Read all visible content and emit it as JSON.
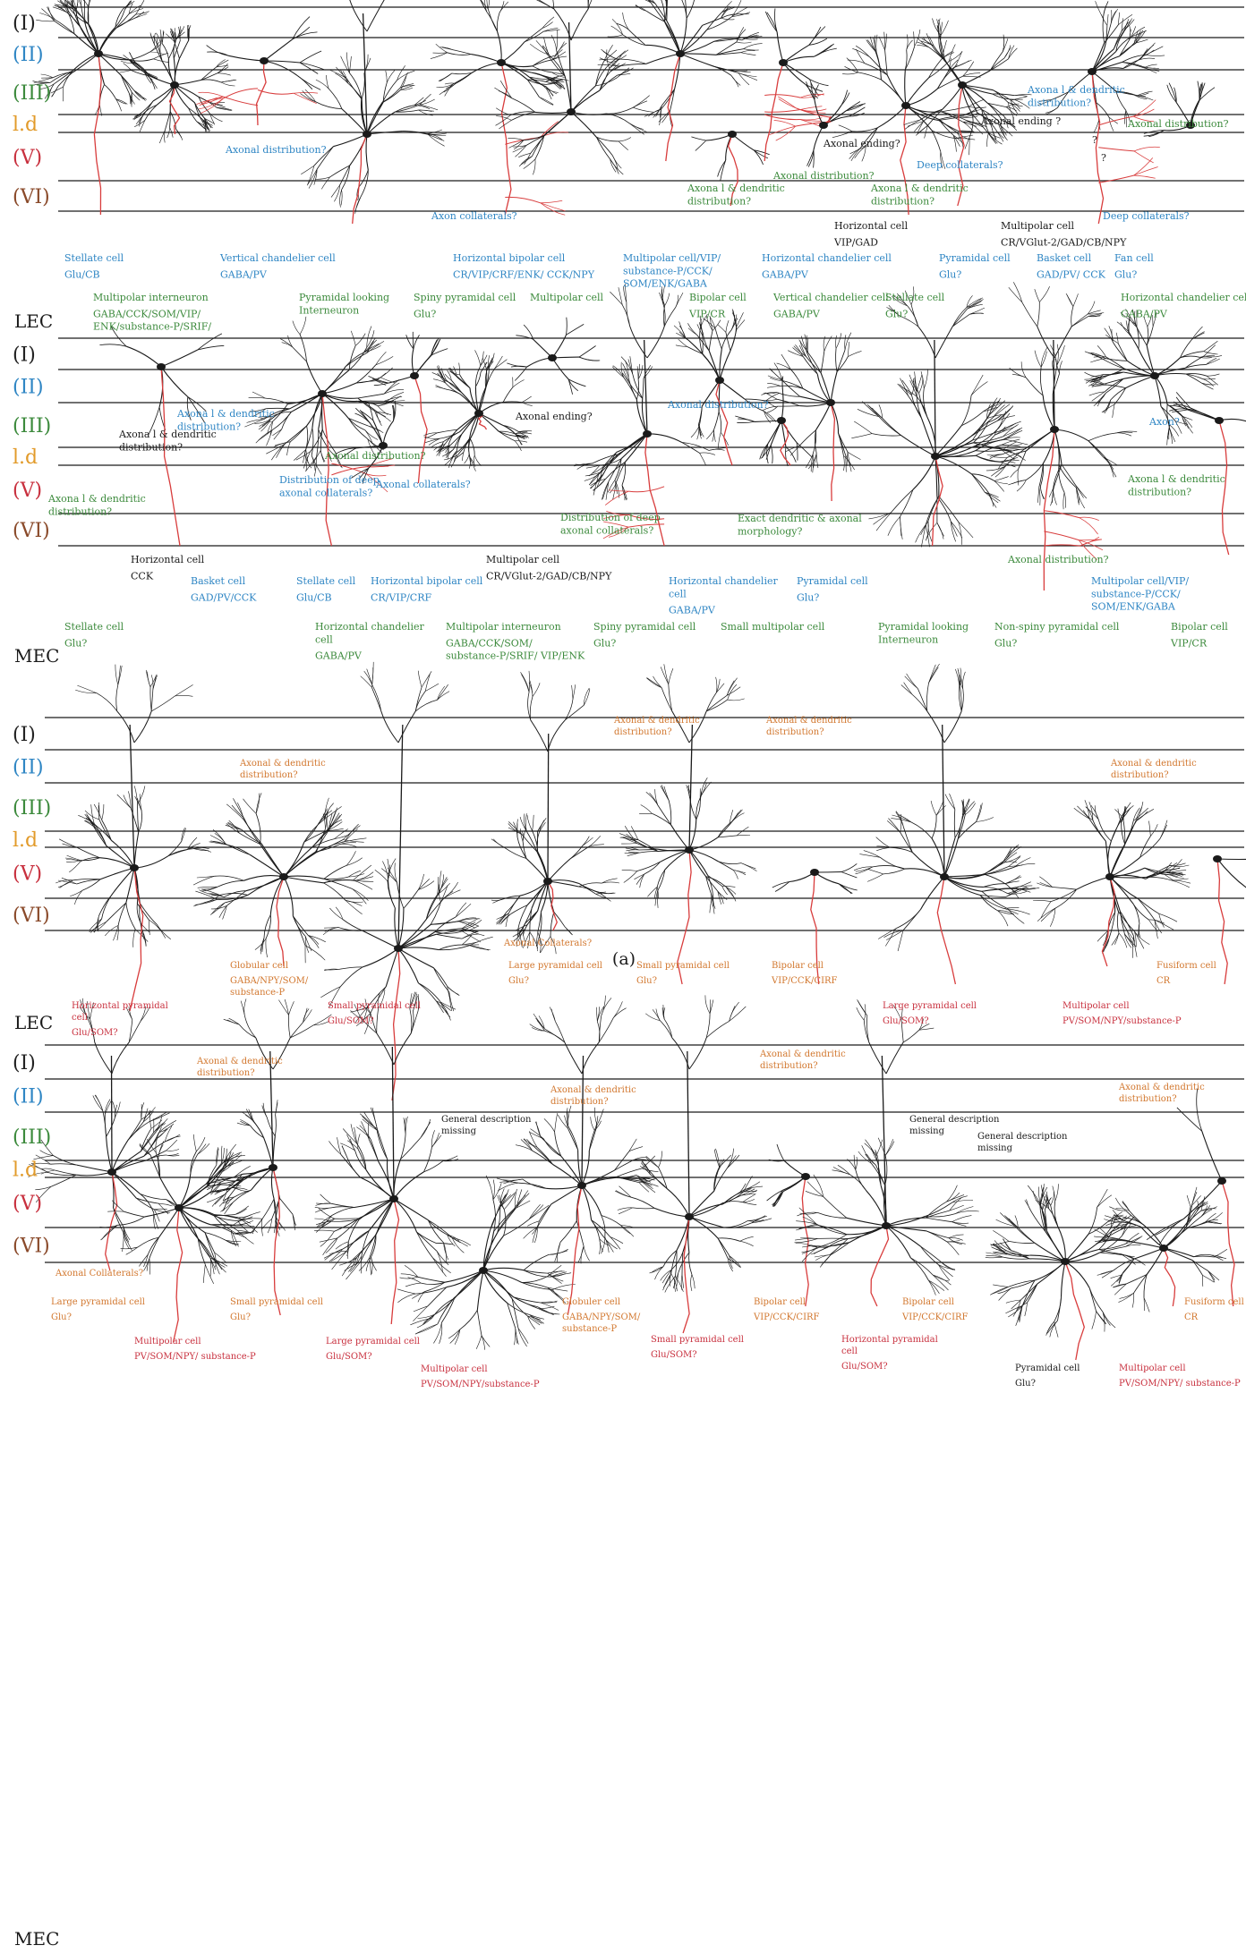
{
  "panel_a": {
    "label": "(a)",
    "lec": {
      "region": "LEC",
      "layers": [
        "(I)",
        "(II)",
        "(III)",
        "l.d",
        "(V)",
        "(VI)"
      ],
      "annotations": [
        {
          "text": "Axonal distribution?",
          "color": "blue"
        },
        {
          "text": "Axon collaterals?",
          "color": "blue"
        },
        {
          "text": "Axona l & dendritic distribution?",
          "color": "green"
        },
        {
          "text": "Axonal ending?",
          "color": "black"
        },
        {
          "text": "Axonal distribution?",
          "color": "green"
        },
        {
          "text": "Deep collaterals?",
          "color": "blue"
        },
        {
          "text": "Axona l & dendritic distribution?",
          "color": "green"
        },
        {
          "text": "Axonal ending ?",
          "color": "black"
        },
        {
          "text": "Axona l & dendritic distribution?",
          "color": "blue"
        },
        {
          "text": "Axonal distribution?",
          "color": "green"
        },
        {
          "text": "Deep collaterals?",
          "color": "blue"
        },
        {
          "text": "?",
          "color": "black"
        },
        {
          "text": "?",
          "color": "black"
        }
      ],
      "cells": [
        {
          "name": "Horizontal cell",
          "markers": "VIP/GAD",
          "color": "black"
        },
        {
          "name": "Multipolar cell",
          "markers": "CR/VGlut-2/GAD/CB/NPY",
          "color": "black"
        },
        {
          "name": "Stellate cell",
          "markers": "Glu/CB",
          "color": "blue"
        },
        {
          "name": "Vertical chandelier cell",
          "markers": "GABA/PV",
          "color": "blue"
        },
        {
          "name": "Horizontal bipolar cell",
          "markers": "CR/VIP/CRF/ENK/ CCK/NPY",
          "color": "blue"
        },
        {
          "name": "Multipolar cell/VIP/ substance-P/CCK/ SOM/ENK/GABA",
          "markers": "",
          "color": "blue"
        },
        {
          "name": "Horizontal chandelier cell",
          "markers": "GABA/PV",
          "color": "blue"
        },
        {
          "name": "Pyramidal cell",
          "markers": "Glu?",
          "color": "blue"
        },
        {
          "name": "Basket cell",
          "markers": "GAD/PV/ CCK",
          "color": "blue"
        },
        {
          "name": "Fan cell",
          "markers": "Glu?",
          "color": "blue"
        },
        {
          "name": "Multipolar interneuron",
          "markers": "GABA/CCK/SOM/VIP/ ENK/substance-P/SRIF/",
          "color": "green"
        },
        {
          "name": "Pyramidal looking Interneuron",
          "markers": "",
          "color": "green"
        },
        {
          "name": "Spiny pyramidal cell",
          "markers": "Glu?",
          "color": "green"
        },
        {
          "name": "Multipolar cell",
          "markers": "",
          "color": "green"
        },
        {
          "name": "Bipolar cell",
          "markers": "VIP/CR",
          "color": "green"
        },
        {
          "name": "Vertical chandelier cell",
          "markers": "GABA/PV",
          "color": "green"
        },
        {
          "name": "Stellate cell",
          "markers": "Glu?",
          "color": "green"
        },
        {
          "name": "Horizontal chandelier cell",
          "markers": "GABA/PV",
          "color": "green"
        }
      ]
    },
    "mec": {
      "region": "MEC",
      "layers": [
        "(I)",
        "(II)",
        "(III)",
        "l.d",
        "(V)",
        "(VI)"
      ],
      "annotations": [
        {
          "text": "Axona l & dendritic distribution?",
          "color": "blue"
        },
        {
          "text": "Axona l & dendritic distribution?",
          "color": "black"
        },
        {
          "text": "Axonal ending?",
          "color": "black"
        },
        {
          "text": "Axonal distribution?",
          "color": "blue"
        },
        {
          "text": "Axon?",
          "color": "blue"
        },
        {
          "text": "Axonal distribution?",
          "color": "green"
        },
        {
          "text": "Axona l & dendritic distribution?",
          "color": "green"
        },
        {
          "text": "Distribution of deep axonal collaterals?",
          "color": "blue"
        },
        {
          "text": "Axonal collaterals?",
          "color": "blue"
        },
        {
          "text": "Axona l & dendritic distribution?",
          "color": "green"
        },
        {
          "text": "Distribution of deep axonal collaterals?",
          "color": "green"
        },
        {
          "text": "Exact dendritic & axonal morphology?",
          "color": "green"
        },
        {
          "text": "Axonal distribution?",
          "color": "green"
        }
      ],
      "cells": [
        {
          "name": "Horizontal cell",
          "markers": "CCK",
          "color": "black"
        },
        {
          "name": "Multipolar cell",
          "markers": "CR/VGlut-2/GAD/CB/NPY",
          "color": "black"
        },
        {
          "name": "Basket cell",
          "markers": "GAD/PV/CCK",
          "color": "blue"
        },
        {
          "name": "Stellate cell",
          "markers": "Glu/CB",
          "color": "blue"
        },
        {
          "name": "Horizontal bipolar cell",
          "markers": "CR/VIP/CRF",
          "color": "blue"
        },
        {
          "name": "Horizontal chandelier cell",
          "markers": "GABA/PV",
          "color": "blue"
        },
        {
          "name": "Pyramidal cell",
          "markers": "Glu?",
          "color": "blue"
        },
        {
          "name": "Multipolar cell/VIP/ substance-P/CCK/ SOM/ENK/GABA",
          "markers": "",
          "color": "blue"
        },
        {
          "name": "Stellate cell",
          "markers": "Glu?",
          "color": "green"
        },
        {
          "name": "Horizontal chandelier cell",
          "markers": "GABA/PV",
          "color": "green"
        },
        {
          "name": "Multipolar interneuron",
          "markers": "GABA/CCK/SOM/ substance-P/SRIF/ VIP/ENK",
          "color": "green"
        },
        {
          "name": "Spiny pyramidal cell",
          "markers": "Glu?",
          "color": "green"
        },
        {
          "name": "Small multipolar cell",
          "markers": "",
          "color": "green"
        },
        {
          "name": "Pyramidal looking Interneuron",
          "markers": "",
          "color": "green"
        },
        {
          "name": "Non-spiny pyramidal cell",
          "markers": "Glu?",
          "color": "green"
        },
        {
          "name": "Bipolar cell",
          "markers": "VIP/CR",
          "color": "green"
        }
      ]
    }
  },
  "panel_b": {
    "lec": {
      "region": "LEC",
      "layers": [
        "(I)",
        "(II)",
        "(III)",
        "l.d",
        "(V)",
        "(VI)"
      ],
      "annotations": [
        {
          "text": "Axonal & dendritic distribution?",
          "color": "orange"
        },
        {
          "text": "Axonal & dendritic distribution?",
          "color": "orange"
        },
        {
          "text": "Axonal & dendritic distribution?",
          "color": "orange"
        },
        {
          "text": "Axonal & dendritic distribution?",
          "color": "orange"
        },
        {
          "text": "Axonal Collaterals?",
          "color": "orange"
        }
      ],
      "cells": [
        {
          "name": "Globular cell",
          "markers": "GABA/NPY/SOM/ substance-P",
          "color": "orange"
        },
        {
          "name": "Large pyramidal cell",
          "markers": "Glu?",
          "color": "orange"
        },
        {
          "name": "Small pyramidal cell",
          "markers": "Glu?",
          "color": "orange"
        },
        {
          "name": "Bipolar cell",
          "markers": "VIP/CCK/CIRF",
          "color": "orange"
        },
        {
          "name": "Fusiform cell",
          "markers": "CR",
          "color": "orange"
        },
        {
          "name": "Horizontal pyramidal cell",
          "markers": "Glu/SOM?",
          "color": "red"
        },
        {
          "name": "Small pyramidal cell",
          "markers": "Glu/SOM?",
          "color": "red"
        },
        {
          "name": "Large pyramidal cell",
          "markers": "Glu/SOM?",
          "color": "red"
        },
        {
          "name": "Multipolar cell",
          "markers": "PV/SOM/NPY/substance-P",
          "color": "red"
        }
      ]
    },
    "mec": {
      "region": "MEC",
      "layers": [
        "(I)",
        "(II)",
        "(III)",
        "l.d",
        "(V)",
        "(VI)"
      ],
      "annotations": [
        {
          "text": "Axonal & dendritic distribution?",
          "color": "orange"
        },
        {
          "text": "Axonal & dendritic distribution?",
          "color": "orange"
        },
        {
          "text": "Axonal & dendritic distribution?",
          "color": "orange"
        },
        {
          "text": "Axonal & dendritic distribution?",
          "color": "orange"
        },
        {
          "text": "General description missing",
          "color": "black"
        },
        {
          "text": "General description missing",
          "color": "black"
        },
        {
          "text": "General description missing",
          "color": "black"
        },
        {
          "text": "Axonal Collaterals?",
          "color": "orange"
        }
      ],
      "cells": [
        {
          "name": "Large pyramidal cell",
          "markers": "Glu?",
          "color": "orange"
        },
        {
          "name": "Small pyramidal cell",
          "markers": "Glu?",
          "color": "orange"
        },
        {
          "name": "Globuler cell",
          "markers": "GABA/NPY/SOM/ substance-P",
          "color": "orange"
        },
        {
          "name": "Bipolar cell",
          "markers": "VIP/CCK/CIRF",
          "color": "orange"
        },
        {
          "name": "Bipolar cell",
          "markers": "VIP/CCK/CIRF",
          "color": "orange"
        },
        {
          "name": "Fusiform cell",
          "markers": "CR",
          "color": "orange"
        },
        {
          "name": "Multipolar cell",
          "markers": "PV/SOM/NPY/ substance-P",
          "color": "red"
        },
        {
          "name": "Large pyramidal cell",
          "markers": "Glu/SOM?",
          "color": "red"
        },
        {
          "name": "Multipolar cell",
          "markers": "PV/SOM/NPY/substance-P",
          "color": "red"
        },
        {
          "name": "Small pyramidal cell",
          "markers": "Glu/SOM?",
          "color": "red"
        },
        {
          "name": "Horizontal pyramidal cell",
          "markers": "Glu/SOM?",
          "color": "red"
        },
        {
          "name": "Pyramidal cell",
          "markers": "Glu?",
          "color": "black"
        },
        {
          "name": "Multipolar cell",
          "markers": "PV/SOM/NPY/ substance-P",
          "color": "red"
        }
      ]
    }
  },
  "colors": {
    "black": "#1a1a1a",
    "blue": "#2f86c4",
    "green": "#3c8a3c",
    "orange": "#d2772e",
    "red": "#c8303e",
    "axon": "#d83c3c",
    "layer_I": "#222222",
    "layer_II": "#2f86c4",
    "layer_III": "#3c8a3c",
    "layer_ld": "#e29b2b",
    "layer_V": "#c8303e",
    "layer_VI": "#8a4a2a"
  }
}
